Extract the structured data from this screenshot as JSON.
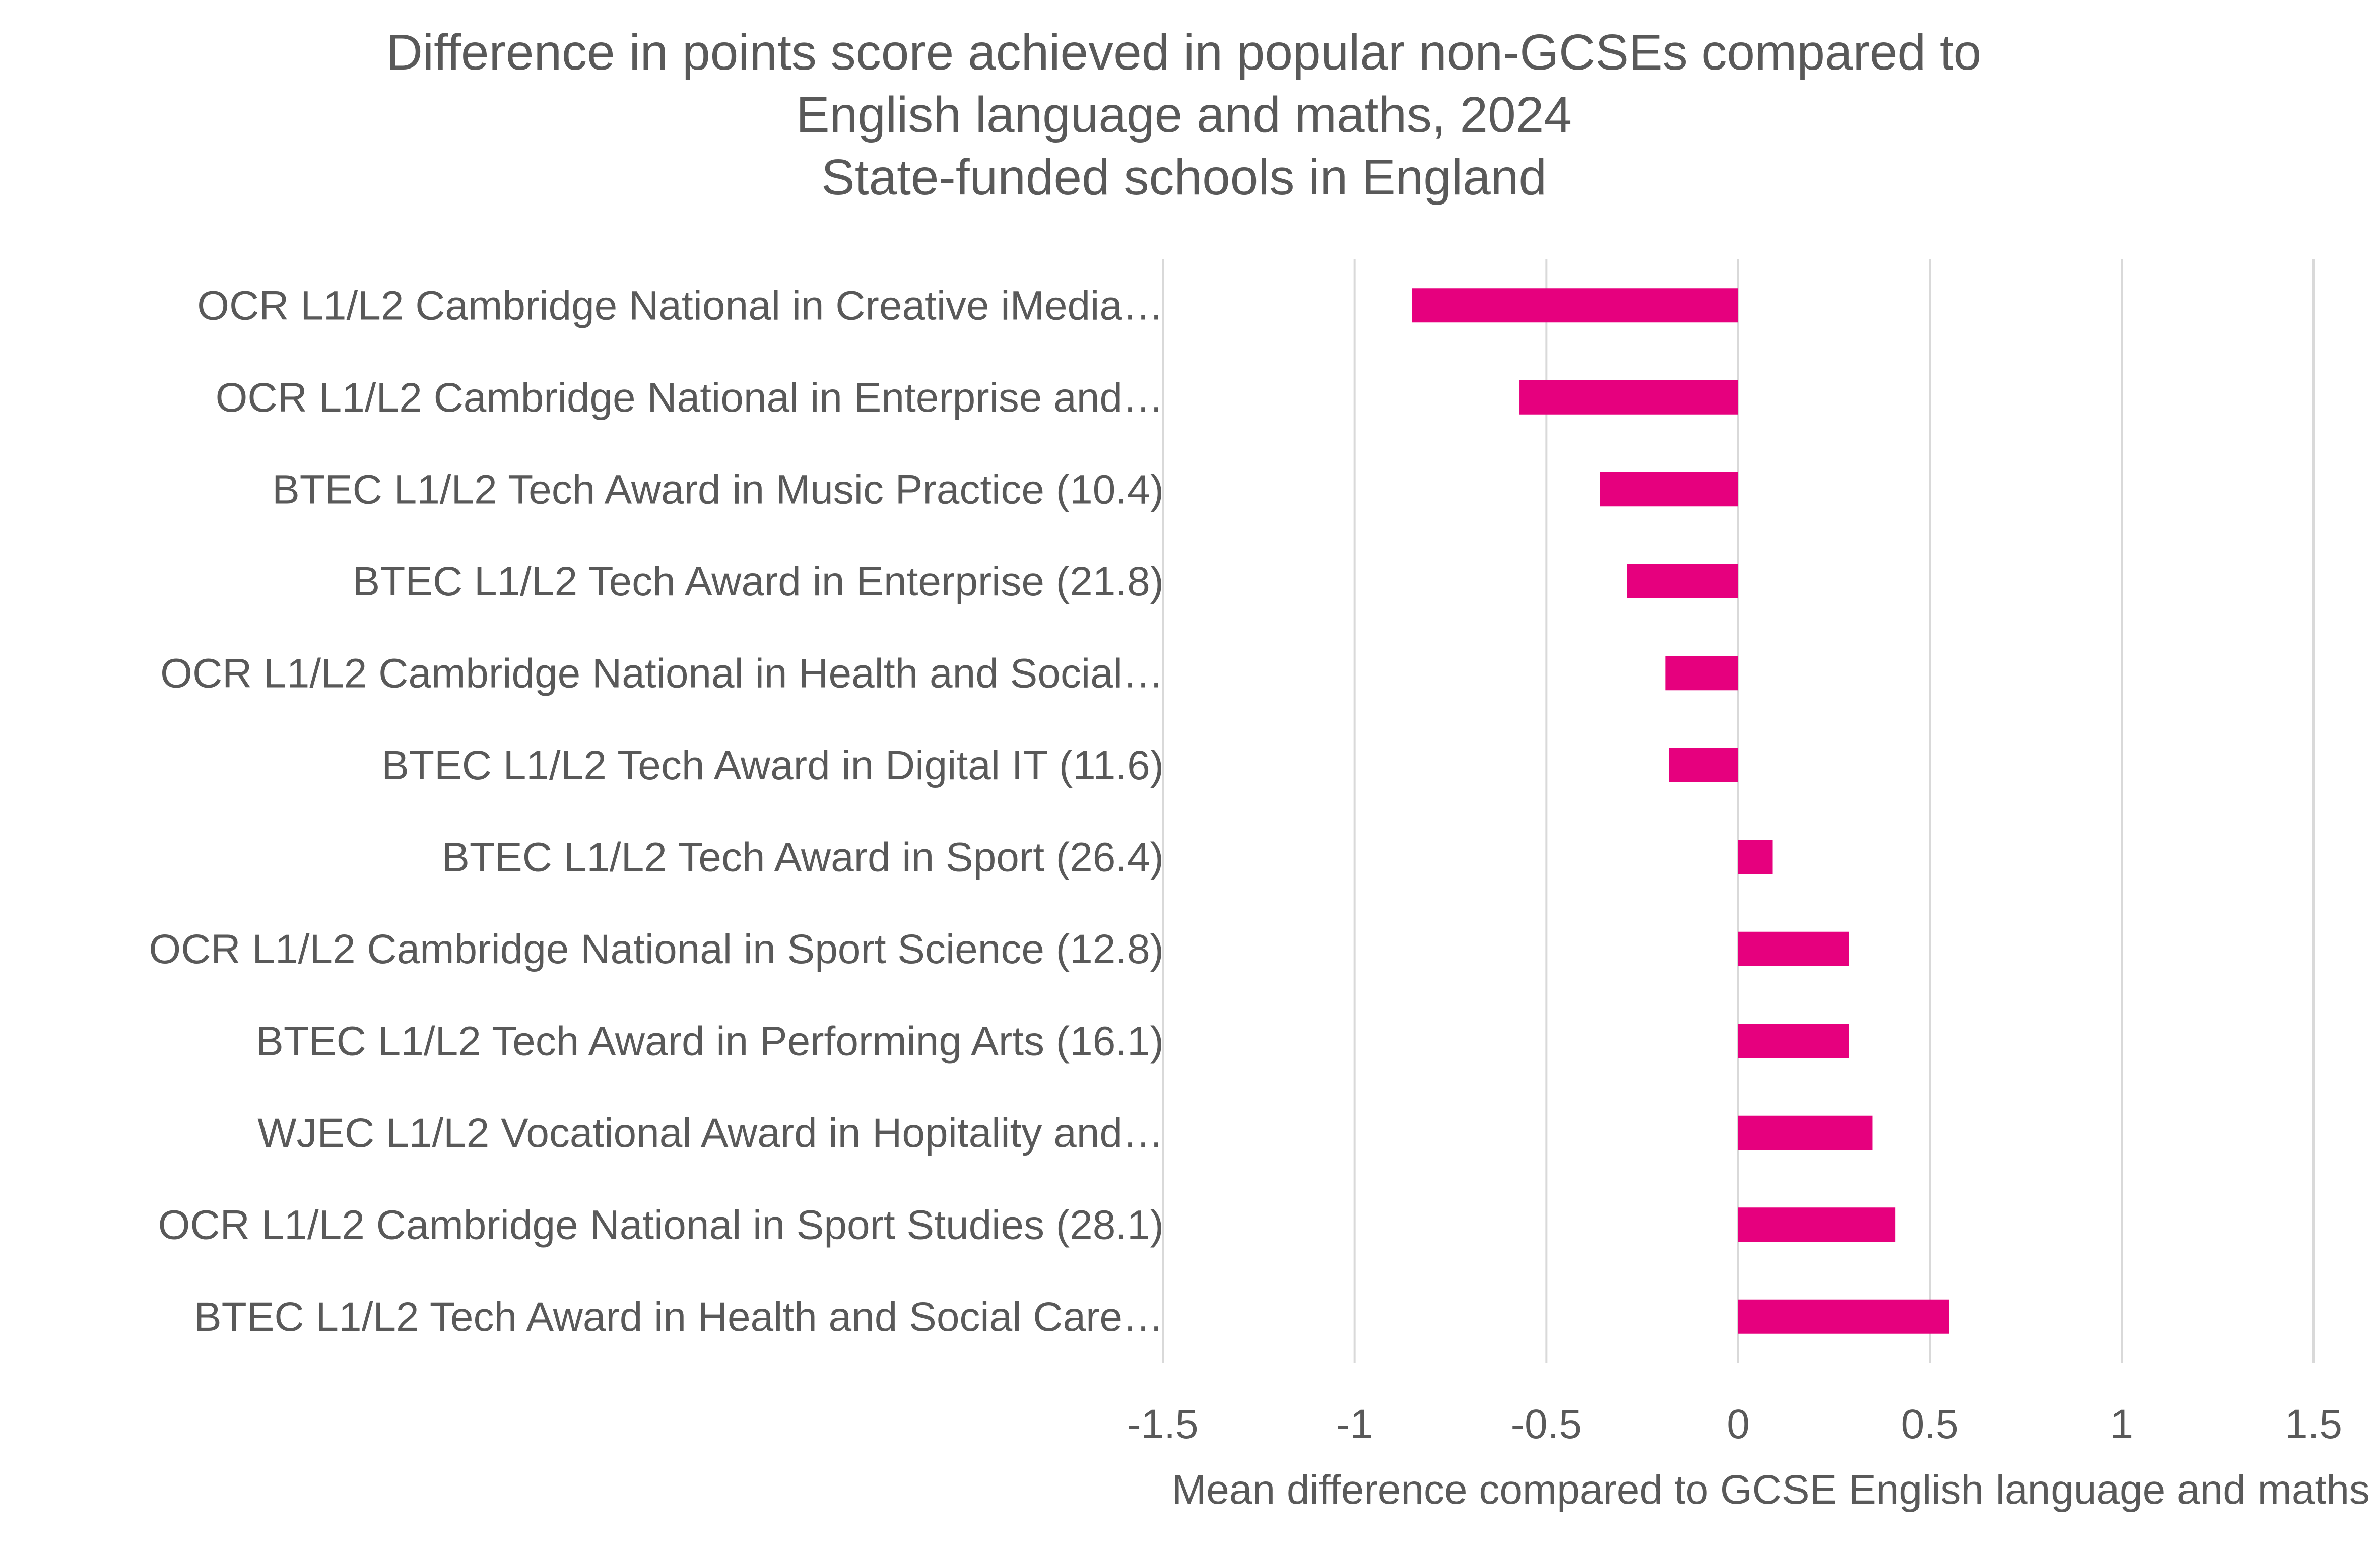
{
  "chart_data": {
    "type": "bar",
    "orientation": "horizontal",
    "title_lines": [
      "Difference in points score achieved in popular non-GCSEs compared to",
      "English language and maths, 2024",
      "State-funded schools in England"
    ],
    "xlabel": "Mean difference compared to GCSE English language and maths",
    "ylabel": "",
    "xlim": [
      -1.5,
      1.5
    ],
    "x_ticks": [
      -1.5,
      -1,
      -0.5,
      0,
      0.5,
      1,
      1.5
    ],
    "x_tick_labels": [
      "-1.5",
      "-1",
      "-0.5",
      "0",
      "0.5",
      "1",
      "1.5"
    ],
    "grid": true,
    "bar_color": "#E6007E",
    "categories": [
      "OCR L1/L2 Cambridge National in Creative iMedia…",
      "OCR L1/L2 Cambridge National in Enterprise and…",
      "BTEC L1/L2 Tech Award in Music Practice (10.4)",
      "BTEC L1/L2 Tech Award in Enterprise (21.8)",
      "OCR L1/L2 Cambridge National in Health and Social…",
      "BTEC L1/L2 Tech Award in Digital IT (11.6)",
      "BTEC L1/L2 Tech Award in Sport (26.4)",
      "OCR L1/L2 Cambridge National in Sport Science (12.8)",
      "BTEC L1/L2 Tech Award in Performing Arts (16.1)",
      "WJEC L1/L2 Vocational Award in Hopitality and…",
      "OCR L1/L2 Cambridge National in Sport Studies (28.1)",
      "BTEC L1/L2 Tech Award in Health and Social Care…"
    ],
    "values": [
      -0.85,
      -0.57,
      -0.36,
      -0.29,
      -0.19,
      -0.18,
      0.09,
      0.29,
      0.29,
      0.35,
      0.41,
      0.55
    ]
  }
}
